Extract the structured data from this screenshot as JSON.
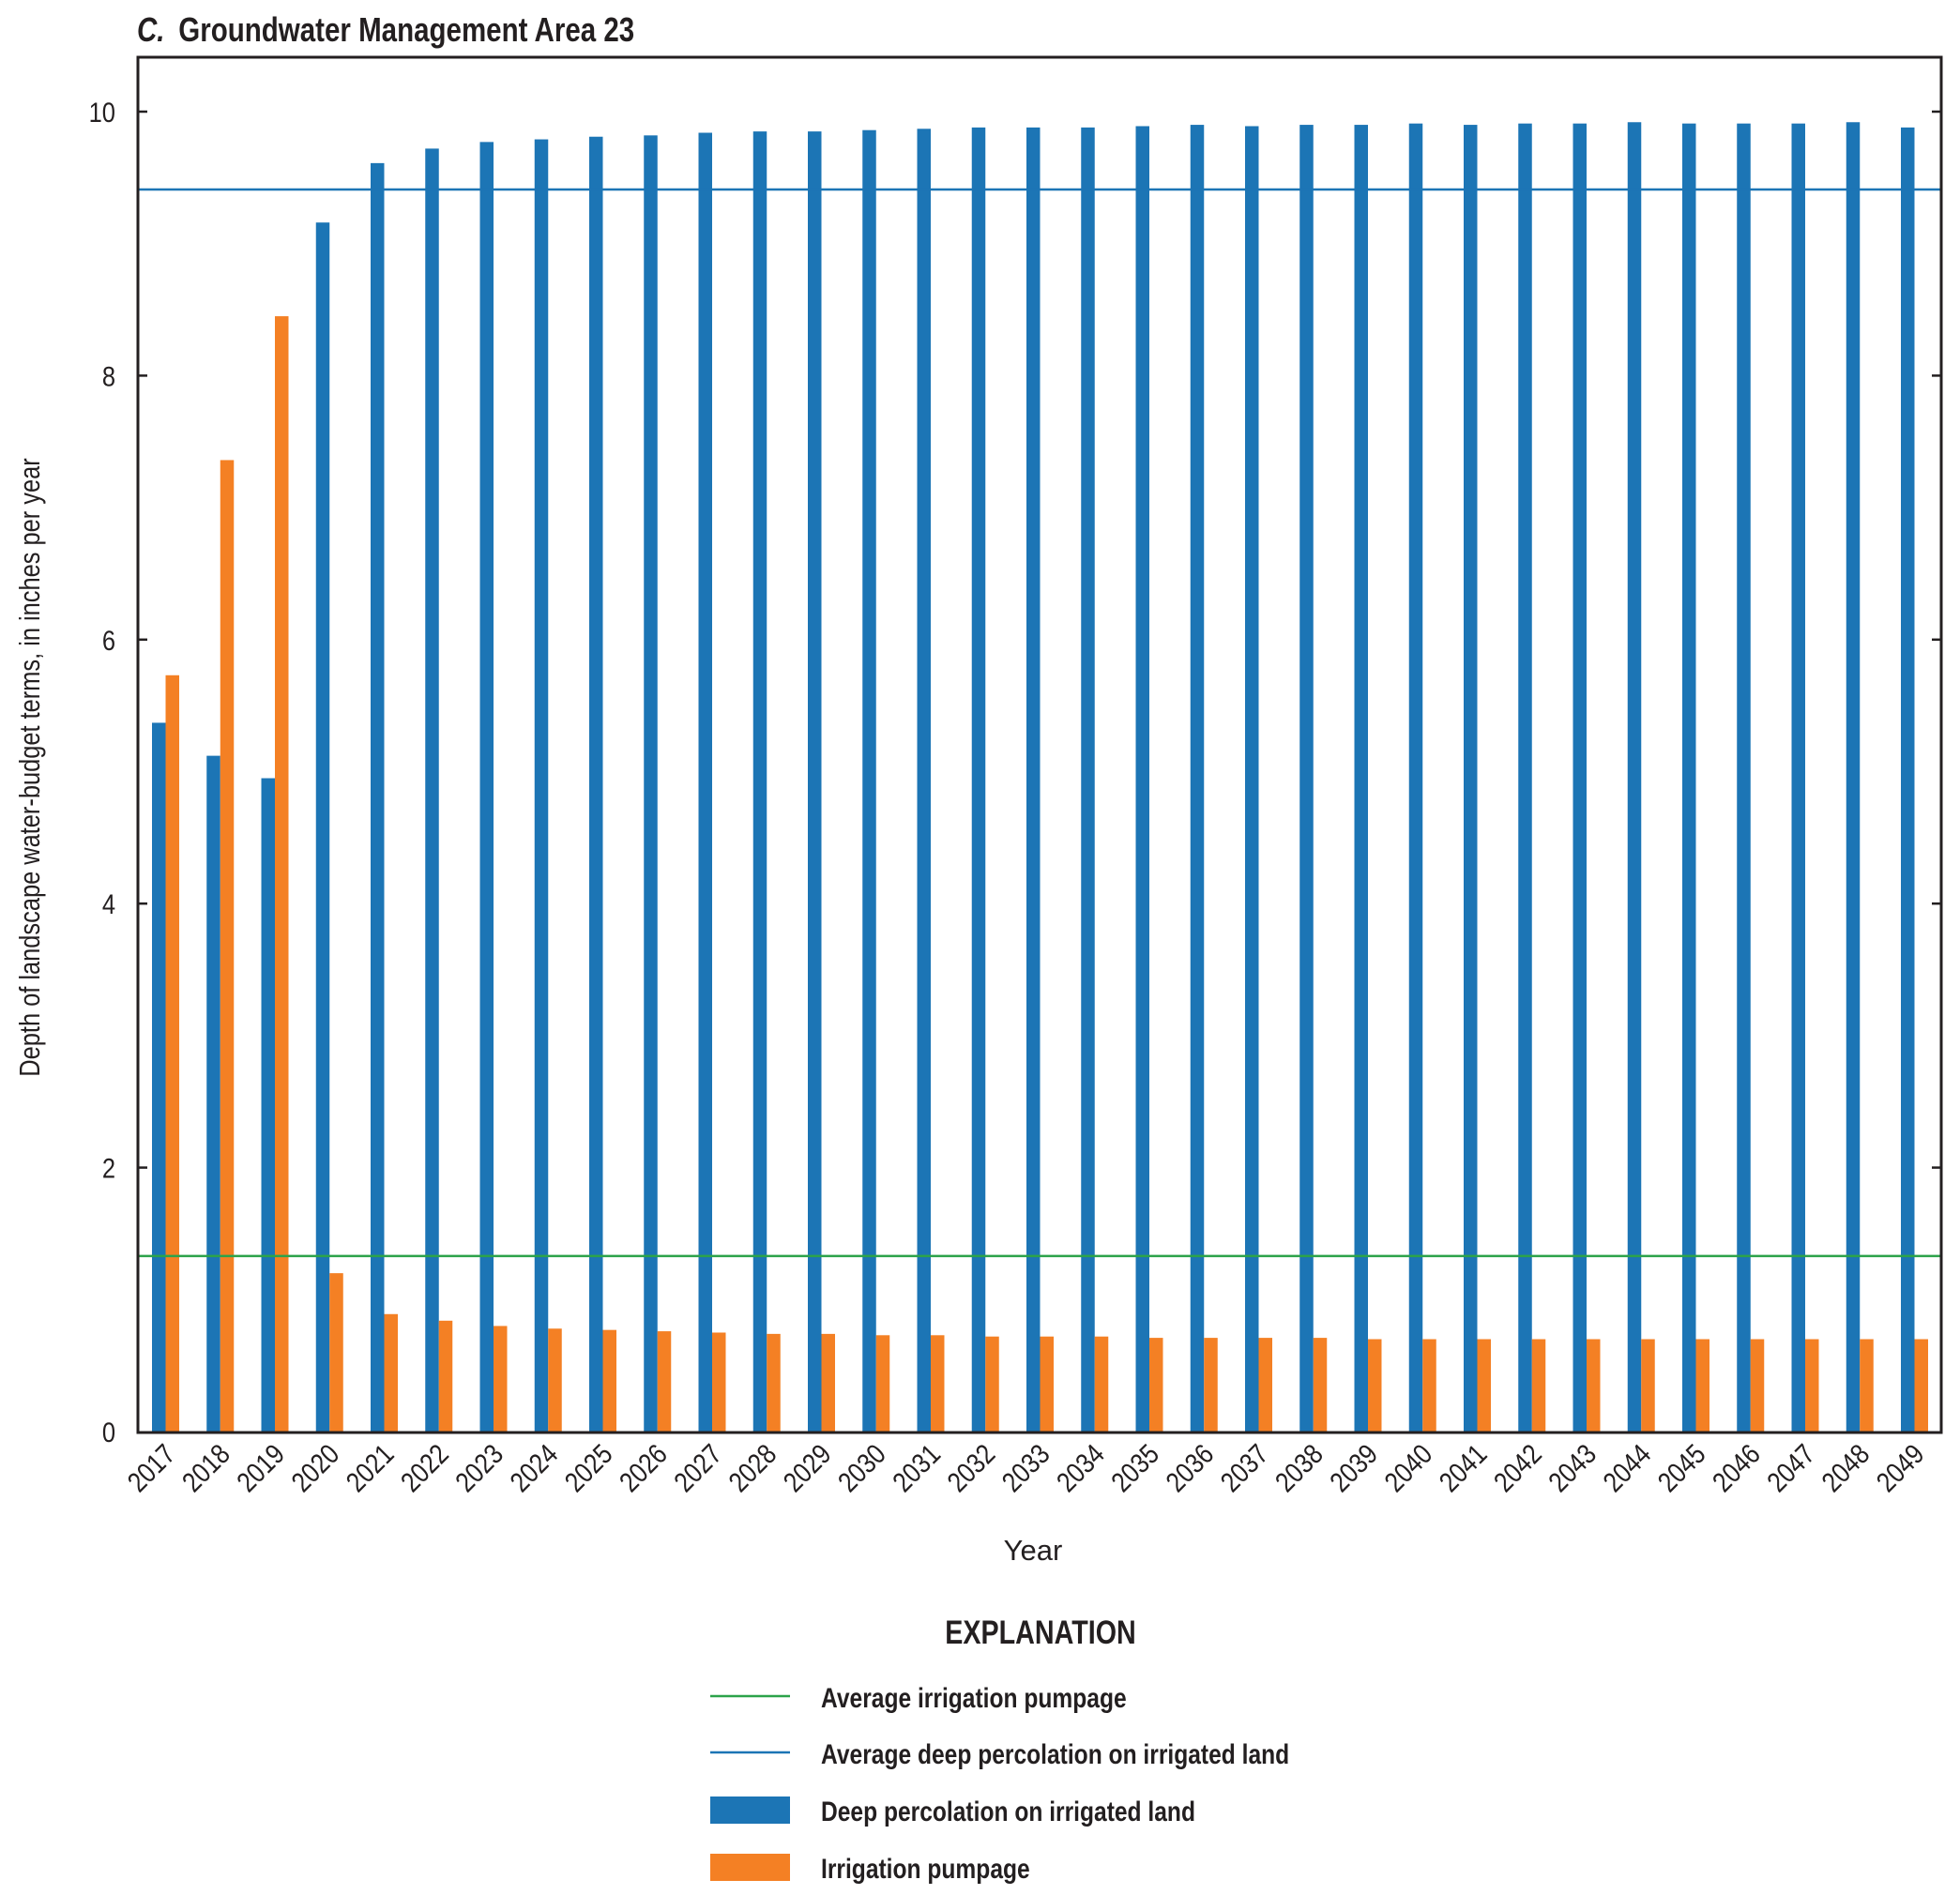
{
  "chart_data": {
    "type": "bar",
    "title_prefix": "C.",
    "title": "Groundwater Management Area 23",
    "xlabel": "Year",
    "ylabel": "Depth of landscape water-budget terms, in inches per year",
    "ylim": [
      0,
      10.4
    ],
    "yticks": [
      0,
      2,
      4,
      6,
      8,
      10
    ],
    "grid": false,
    "categories": [
      "2017",
      "2018",
      "2019",
      "2020",
      "2021",
      "2022",
      "2023",
      "2024",
      "2025",
      "2026",
      "2027",
      "2028",
      "2029",
      "2030",
      "2031",
      "2032",
      "2033",
      "2034",
      "2035",
      "2036",
      "2037",
      "2038",
      "2039",
      "2040",
      "2041",
      "2042",
      "2043",
      "2044",
      "2045",
      "2046",
      "2047",
      "2048",
      "2049"
    ],
    "series": [
      {
        "name": "Deep percolation on irrigated land",
        "color": "#1c75b5",
        "values": [
          5.37,
          5.12,
          4.95,
          9.16,
          9.61,
          9.72,
          9.77,
          9.79,
          9.81,
          9.82,
          9.84,
          9.85,
          9.85,
          9.86,
          9.87,
          9.88,
          9.88,
          9.88,
          9.89,
          9.9,
          9.89,
          9.9,
          9.9,
          9.91,
          9.9,
          9.91,
          9.91,
          9.92,
          9.91,
          9.91,
          9.91,
          9.92,
          9.88
        ]
      },
      {
        "name": "Irrigation pumpage",
        "color": "#f48024",
        "values": [
          5.73,
          7.36,
          8.45,
          1.2,
          0.89,
          0.84,
          0.8,
          0.78,
          0.77,
          0.76,
          0.75,
          0.74,
          0.74,
          0.73,
          0.73,
          0.72,
          0.72,
          0.72,
          0.71,
          0.71,
          0.71,
          0.71,
          0.7,
          0.7,
          0.7,
          0.7,
          0.7,
          0.7,
          0.7,
          0.7,
          0.7,
          0.7,
          0.7
        ]
      }
    ],
    "reference_lines": [
      {
        "name": "Average irrigation pumpage",
        "value": 1.33,
        "color": "#2ca34a"
      },
      {
        "name": "Average deep percolation on irrigated land",
        "value": 9.41,
        "color": "#1c75b5"
      }
    ],
    "legend": {
      "title": "EXPLANATION",
      "placement": "bottom-center",
      "items": [
        {
          "label": "Average irrigation pumpage",
          "kind": "line",
          "color": "#2ca34a"
        },
        {
          "label": "Average deep percolation on irrigated land",
          "kind": "line",
          "color": "#1c75b5"
        },
        {
          "label": "Deep percolation on irrigated land",
          "kind": "box",
          "color": "#1c75b5"
        },
        {
          "label": "Irrigation pumpage",
          "kind": "box",
          "color": "#f48024"
        }
      ]
    }
  }
}
